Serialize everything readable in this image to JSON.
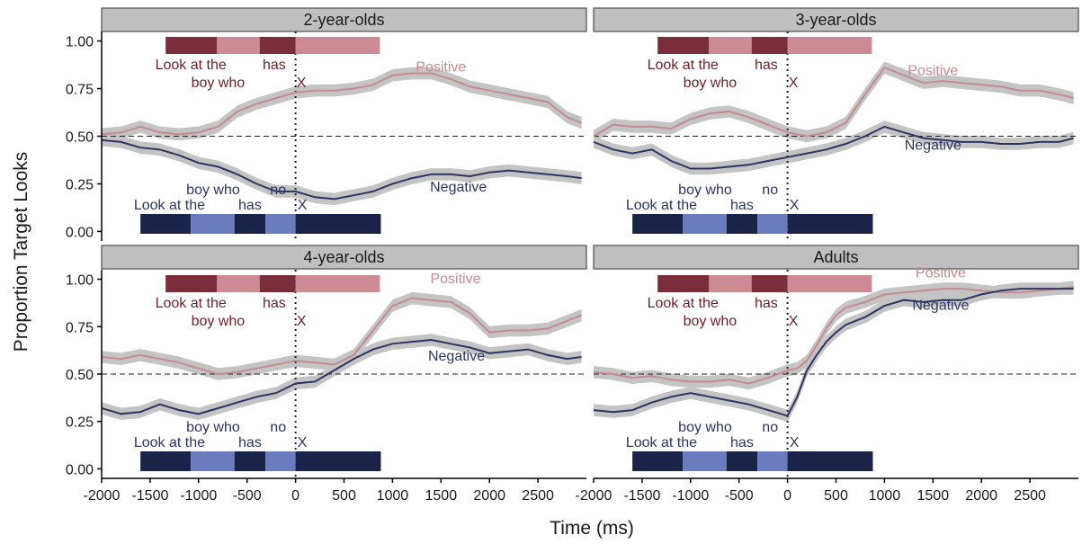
{
  "chart_data": {
    "type": "line",
    "xlabel": "Time (ms)",
    "ylabel": "Proportion Target Looks",
    "xlim": [
      -2000,
      3000
    ],
    "ylim": [
      -0.05,
      1.05
    ],
    "x_ticks": [
      -2000,
      -1500,
      -1000,
      -500,
      0,
      500,
      1000,
      1500,
      2000,
      2500
    ],
    "y_ticks": [
      0.0,
      0.25,
      0.5,
      0.75,
      1.0
    ],
    "y_tick_labels": [
      "0.00",
      "0.25",
      "0.50",
      "0.75",
      "1.00"
    ],
    "chance_line": 0.5,
    "onset_line": 0,
    "colors": {
      "positive": "#c48a8f",
      "negative": "#2c3560",
      "ribbon": "#c4c4c4",
      "pos_bar_dark": "#7a2e3c",
      "pos_bar_light": "#cc8a94",
      "neg_bar_dark": "#1a2448",
      "neg_bar_light": "#6a7bbe",
      "pos_text": "#6b1f26",
      "neg_text": "#2c3560",
      "strip_fill": "#bfbfbf"
    },
    "positive_sentence": {
      "bars": [
        {
          "x0": -1340,
          "x1": -810,
          "tone": "dark"
        },
        {
          "x0": -810,
          "x1": -370,
          "tone": "light"
        },
        {
          "x0": -370,
          "x1": 0,
          "tone": "dark"
        },
        {
          "x0": 0,
          "x1": 870,
          "tone": "light"
        }
      ],
      "words": [
        {
          "text": "Look at the",
          "x": -1080,
          "row": 1
        },
        {
          "text": "has",
          "x": -220,
          "row": 1
        },
        {
          "text": "boy who",
          "x": -800,
          "row": 2
        },
        {
          "text": "X",
          "x": 60,
          "row": 2
        }
      ]
    },
    "negative_sentence": {
      "bars": [
        {
          "x0": -1600,
          "x1": -1080,
          "tone": "dark"
        },
        {
          "x0": -1080,
          "x1": -630,
          "tone": "light"
        },
        {
          "x0": -630,
          "x1": -310,
          "tone": "dark"
        },
        {
          "x0": -310,
          "x1": 0,
          "tone": "light"
        },
        {
          "x0": 0,
          "x1": 880,
          "tone": "dark"
        }
      ],
      "words": [
        {
          "text": "boy who",
          "x": -850,
          "row": 2
        },
        {
          "text": "no",
          "x": -180,
          "row": 2
        },
        {
          "text": "Look at the",
          "x": -1300,
          "row": 1
        },
        {
          "text": "has",
          "x": -470,
          "row": 1
        },
        {
          "text": "X",
          "x": 70,
          "row": 1
        }
      ]
    },
    "panels": [
      {
        "title": "2-year-olds",
        "positive_label": {
          "text": "Positive",
          "x": 1500,
          "y": 0.84
        },
        "negative_label": {
          "text": "Negative",
          "x": 1680,
          "y": 0.21
        },
        "positive": {
          "x": [
            -2000,
            -1800,
            -1600,
            -1400,
            -1200,
            -1000,
            -800,
            -600,
            -400,
            -200,
            0,
            200,
            400,
            600,
            800,
            1000,
            1200,
            1400,
            1600,
            1800,
            2000,
            2200,
            2400,
            2600,
            2800,
            2950
          ],
          "y": [
            0.51,
            0.52,
            0.55,
            0.52,
            0.51,
            0.52,
            0.55,
            0.63,
            0.67,
            0.7,
            0.73,
            0.74,
            0.74,
            0.75,
            0.77,
            0.82,
            0.83,
            0.83,
            0.8,
            0.76,
            0.74,
            0.72,
            0.7,
            0.68,
            0.6,
            0.57
          ]
        },
        "negative": {
          "x": [
            -2000,
            -1800,
            -1600,
            -1400,
            -1200,
            -1000,
            -800,
            -600,
            -400,
            -200,
            0,
            200,
            400,
            600,
            800,
            1000,
            1200,
            1400,
            1600,
            1800,
            2000,
            2200,
            2400,
            2600,
            2800,
            2950
          ],
          "y": [
            0.48,
            0.47,
            0.44,
            0.43,
            0.4,
            0.36,
            0.34,
            0.3,
            0.25,
            0.21,
            0.21,
            0.18,
            0.17,
            0.19,
            0.21,
            0.25,
            0.28,
            0.3,
            0.3,
            0.29,
            0.31,
            0.32,
            0.31,
            0.3,
            0.29,
            0.28
          ]
        }
      },
      {
        "title": "3-year-olds",
        "positive_label": {
          "text": "Positive",
          "x": 1500,
          "y": 0.82
        },
        "negative_label": {
          "text": "Negative",
          "x": 1500,
          "y": 0.43
        },
        "positive": {
          "x": [
            -2000,
            -1800,
            -1600,
            -1400,
            -1200,
            -1000,
            -800,
            -600,
            -400,
            -200,
            0,
            200,
            400,
            600,
            800,
            1000,
            1200,
            1400,
            1600,
            1800,
            2000,
            2200,
            2400,
            2600,
            2800,
            2950
          ],
          "y": [
            0.5,
            0.56,
            0.55,
            0.55,
            0.54,
            0.59,
            0.62,
            0.63,
            0.6,
            0.56,
            0.52,
            0.5,
            0.52,
            0.57,
            0.72,
            0.86,
            0.82,
            0.78,
            0.79,
            0.78,
            0.77,
            0.76,
            0.74,
            0.74,
            0.72,
            0.7
          ]
        },
        "negative": {
          "x": [
            -2000,
            -1800,
            -1600,
            -1400,
            -1200,
            -1000,
            -800,
            -600,
            -400,
            -200,
            0,
            200,
            400,
            600,
            800,
            1000,
            1200,
            1400,
            1600,
            1800,
            2000,
            2200,
            2400,
            2600,
            2800,
            2950
          ],
          "y": [
            0.47,
            0.43,
            0.41,
            0.43,
            0.37,
            0.33,
            0.33,
            0.34,
            0.35,
            0.37,
            0.39,
            0.41,
            0.43,
            0.46,
            0.5,
            0.55,
            0.52,
            0.49,
            0.48,
            0.47,
            0.47,
            0.46,
            0.46,
            0.47,
            0.47,
            0.49
          ]
        }
      },
      {
        "title": "4-year-olds",
        "positive_label": {
          "text": "Positive",
          "x": 1650,
          "y": 0.98
        },
        "negative_label": {
          "text": "Negative",
          "x": 1660,
          "y": 0.57
        },
        "positive": {
          "x": [
            -2000,
            -1800,
            -1600,
            -1400,
            -1200,
            -1000,
            -800,
            -600,
            -400,
            -200,
            0,
            200,
            400,
            600,
            800,
            1000,
            1200,
            1400,
            1600,
            1800,
            2000,
            2200,
            2400,
            2600,
            2800,
            2950
          ],
          "y": [
            0.59,
            0.58,
            0.6,
            0.58,
            0.56,
            0.53,
            0.5,
            0.51,
            0.53,
            0.55,
            0.57,
            0.56,
            0.55,
            0.6,
            0.73,
            0.86,
            0.9,
            0.89,
            0.88,
            0.82,
            0.72,
            0.73,
            0.73,
            0.74,
            0.78,
            0.81
          ]
        },
        "negative": {
          "x": [
            -2000,
            -1800,
            -1600,
            -1400,
            -1200,
            -1000,
            -800,
            -600,
            -400,
            -200,
            0,
            200,
            400,
            600,
            800,
            1000,
            1200,
            1400,
            1600,
            1800,
            2000,
            2200,
            2400,
            2600,
            2800,
            2950
          ],
          "y": [
            0.32,
            0.29,
            0.3,
            0.34,
            0.31,
            0.29,
            0.32,
            0.35,
            0.38,
            0.4,
            0.45,
            0.46,
            0.52,
            0.58,
            0.63,
            0.66,
            0.67,
            0.68,
            0.66,
            0.64,
            0.61,
            0.62,
            0.63,
            0.6,
            0.58,
            0.59
          ]
        }
      },
      {
        "title": "Adults",
        "positive_label": {
          "text": "Positive",
          "x": 1580,
          "y": 1.01
        },
        "negative_label": {
          "text": "Negative",
          "x": 1580,
          "y": 0.84
        },
        "positive": {
          "x": [
            -2000,
            -1800,
            -1600,
            -1400,
            -1200,
            -1000,
            -800,
            -600,
            -400,
            -200,
            0,
            100,
            200,
            300,
            400,
            500,
            600,
            800,
            1000,
            1200,
            1400,
            1600,
            1800,
            2000,
            2200,
            2400,
            2600,
            2800,
            2950
          ],
          "y": [
            0.51,
            0.5,
            0.48,
            0.49,
            0.47,
            0.46,
            0.46,
            0.47,
            0.45,
            0.48,
            0.52,
            0.53,
            0.57,
            0.65,
            0.74,
            0.81,
            0.85,
            0.88,
            0.92,
            0.93,
            0.94,
            0.95,
            0.95,
            0.94,
            0.93,
            0.93,
            0.94,
            0.95,
            0.96
          ]
        },
        "negative": {
          "x": [
            -2000,
            -1800,
            -1600,
            -1400,
            -1200,
            -1000,
            -800,
            -600,
            -400,
            -200,
            0,
            100,
            200,
            300,
            400,
            500,
            600,
            800,
            1000,
            1200,
            1400,
            1600,
            1800,
            2000,
            2200,
            2400,
            2600,
            2800,
            2950
          ],
          "y": [
            0.31,
            0.3,
            0.31,
            0.35,
            0.38,
            0.4,
            0.38,
            0.36,
            0.34,
            0.31,
            0.28,
            0.38,
            0.52,
            0.6,
            0.67,
            0.72,
            0.76,
            0.8,
            0.86,
            0.89,
            0.88,
            0.89,
            0.89,
            0.92,
            0.94,
            0.95,
            0.95,
            0.95,
            0.95
          ]
        }
      }
    ]
  }
}
